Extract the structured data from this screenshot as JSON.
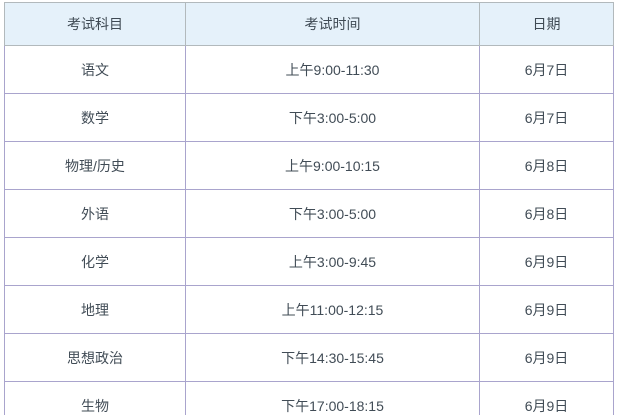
{
  "chart_data": {
    "type": "table",
    "columns": [
      "考试科目",
      "考试时间",
      "日期"
    ],
    "rows": [
      [
        "语文",
        "上午9:00-11:30",
        "6月7日"
      ],
      [
        "数学",
        "下午3:00-5:00",
        "6月7日"
      ],
      [
        "物理/历史",
        "上午9:00-10:15",
        "6月8日"
      ],
      [
        "外语",
        "下午3:00-5:00",
        "6月8日"
      ],
      [
        "化学",
        "上午3:00-9:45",
        "6月9日"
      ],
      [
        "地理",
        "上午11:00-12:15",
        "6月9日"
      ],
      [
        "思想政治",
        "下午14:30-15:45",
        "6月9日"
      ],
      [
        "生物",
        "下午17:00-18:15",
        "6月9日"
      ]
    ]
  },
  "colors": {
    "header_bg": "#e5f1fa",
    "header_border": "#b2b9bc",
    "header_text": "#3f4a54",
    "body_border": "#a9a4cd",
    "body_text": "#414c56"
  }
}
